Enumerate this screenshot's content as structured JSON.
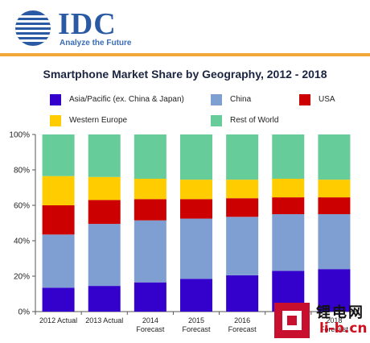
{
  "header": {
    "logo": {
      "wordmark": "IDC",
      "tagline": "Analyze the Future",
      "icon": "globe-logo-icon",
      "color": "#2a5aa3"
    },
    "rule_color": "#f2a63a"
  },
  "chart_data": {
    "type": "bar",
    "stacked": true,
    "title": "Smartphone Market Share by Geography, 2012 - 2018",
    "xlabel": "",
    "ylabel": "",
    "ylim": [
      0,
      100
    ],
    "yticks": [
      "0%",
      "20%",
      "40%",
      "60%",
      "80%",
      "100%"
    ],
    "grid": false,
    "legend_position": "top",
    "categories": [
      [
        "2012 Actual"
      ],
      [
        "2013 Actual"
      ],
      [
        "2014",
        "Forecast"
      ],
      [
        "2015",
        "Forecast"
      ],
      [
        "2016",
        "Forecast"
      ],
      [
        "2017",
        "Forecast"
      ],
      [
        "2018",
        "Forecast"
      ]
    ],
    "series": [
      {
        "name": "Asia/Pacific (ex. China & Japan)",
        "color": "#3300cc",
        "values": [
          13.5,
          14.5,
          16.5,
          18.5,
          20.5,
          23,
          24
        ]
      },
      {
        "name": "China",
        "color": "#7f9fd2",
        "values": [
          30,
          35,
          35,
          34,
          33,
          32,
          31
        ]
      },
      {
        "name": "USA",
        "color": "#cc0000",
        "values": [
          16.5,
          13.5,
          12,
          11,
          10.5,
          9.5,
          9.5
        ]
      },
      {
        "name": "Western Europe",
        "color": "#ffcc00",
        "values": [
          16.5,
          13,
          11.5,
          11,
          10.5,
          10.5,
          10
        ]
      },
      {
        "name": "Rest of World",
        "color": "#66cc99",
        "values": [
          23.5,
          24,
          25,
          25.5,
          25.5,
          25,
          25.5
        ]
      }
    ]
  },
  "watermark": {
    "text_top": "锂电网",
    "text_bottom": "li-b.cn",
    "color": "#c8102e"
  }
}
